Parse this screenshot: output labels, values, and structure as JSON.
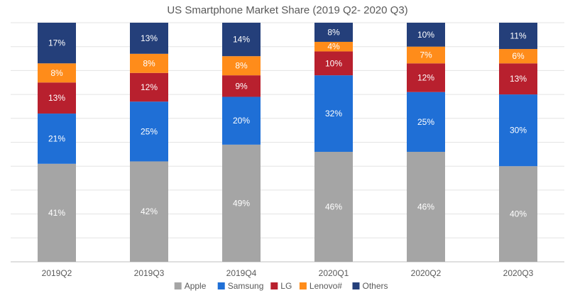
{
  "chart_data": {
    "type": "bar",
    "stacked": true,
    "title": "US Smartphone Market Share (2019 Q2- 2020 Q3)",
    "categories": [
      "2019Q2",
      "2019Q3",
      "2019Q4",
      "2020Q1",
      "2020Q2",
      "2020Q3"
    ],
    "series": [
      {
        "name": "Apple",
        "color": "#a5a5a5",
        "values": [
          41,
          42,
          49,
          46,
          46,
          40
        ]
      },
      {
        "name": "Samsung",
        "color": "#1f6fd6",
        "values": [
          21,
          25,
          20,
          32,
          25,
          30
        ]
      },
      {
        "name": "LG",
        "color": "#b8202e",
        "values": [
          13,
          12,
          9,
          10,
          12,
          13
        ]
      },
      {
        "name": "Lenovo#",
        "color": "#ff8c1a",
        "values": [
          8,
          8,
          8,
          4,
          7,
          6
        ]
      },
      {
        "name": "Others",
        "color": "#243f7a",
        "values": [
          17,
          13,
          14,
          8,
          10,
          11
        ]
      }
    ],
    "ylim": [
      0,
      100
    ],
    "xlabel": "",
    "ylabel": "",
    "grid": true,
    "legend_position": "bottom",
    "data_label_suffix": "%"
  }
}
